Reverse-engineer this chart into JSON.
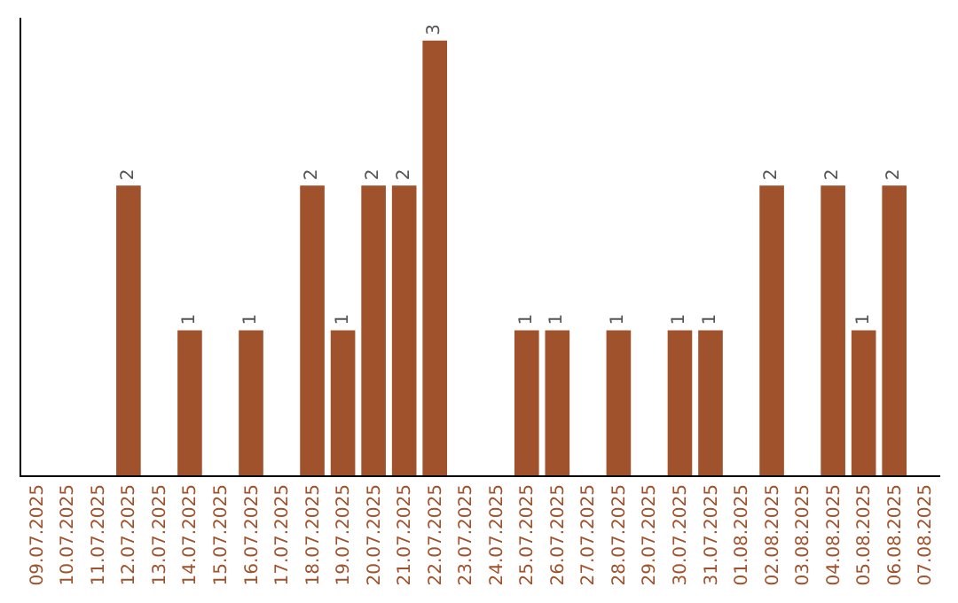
{
  "chart_data": {
    "type": "bar",
    "categories": [
      "09.07.2025",
      "10.07.2025",
      "11.07.2025",
      "12.07.2025",
      "13.07.2025",
      "14.07.2025",
      "15.07.2025",
      "16.07.2025",
      "17.07.2025",
      "18.07.2025",
      "19.07.2025",
      "20.07.2025",
      "21.07.2025",
      "22.07.2025",
      "23.07.2025",
      "24.07.2025",
      "25.07.2025",
      "26.07.2025",
      "27.07.2025",
      "28.07.2025",
      "29.07.2025",
      "30.07.2025",
      "31.07.2025",
      "01.08.2025",
      "02.08.2025",
      "03.08.2025",
      "04.08.2025",
      "05.08.2025",
      "06.08.2025",
      "07.08.2025"
    ],
    "values": [
      0,
      0,
      0,
      2,
      0,
      1,
      0,
      1,
      0,
      2,
      1,
      2,
      2,
      3,
      0,
      0,
      1,
      1,
      0,
      1,
      0,
      1,
      1,
      0,
      2,
      0,
      2,
      1,
      2,
      0
    ],
    "value_labels": [
      null,
      null,
      null,
      "2",
      null,
      "1",
      null,
      "1",
      null,
      "2",
      "1",
      "2",
      "2",
      "3",
      null,
      null,
      "1",
      "1",
      null,
      "1",
      null,
      "1",
      "1",
      null,
      "2",
      null,
      "2",
      "1",
      "2",
      null
    ],
    "color": "#a0522d",
    "tick_labels": "x",
    "grid": false,
    "legend": false
  }
}
